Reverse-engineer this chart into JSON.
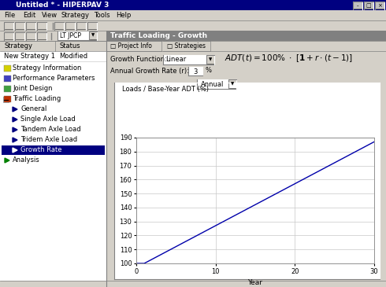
{
  "title_bar": "Untitled * - HIPERPAV 3",
  "menu_items": [
    "File",
    "Edit",
    "View",
    "Strategy",
    "Tools",
    "Help"
  ],
  "tab_project": "Project Info",
  "tab_strategies": "Strategies",
  "panel_title": "Traffic Loading - Growth",
  "dropdown_label": "LT JPCP",
  "strategy_label": "Strategy",
  "status_label": "Status",
  "strategy_name": "New Strategy 1",
  "strategy_status": "Modified",
  "growth_function_label": "Growth Function:",
  "growth_function_value": "Linear",
  "annual_growth_label": "Annual Growth Rate (r):",
  "annual_growth_value": "3",
  "annual_growth_unit": "%",
  "annual_dropdown": "Annual",
  "chart_ylabel": "Loads / Base-Year ADT (%)",
  "chart_xlabel": "Year",
  "chart_xlim": [
    0,
    30
  ],
  "chart_ylim": [
    100,
    190
  ],
  "chart_yticks": [
    100,
    110,
    120,
    130,
    140,
    150,
    160,
    170,
    180,
    190
  ],
  "chart_xticks": [
    0,
    10,
    20,
    30
  ],
  "line_color": "#0000aa",
  "bg_color": "#d4d0c8",
  "sidebar_bg": "#f0f0f0",
  "chart_bg": "#ffffff",
  "title_bar_color": "#000080",
  "title_bar_text_color": "#ffffff",
  "panel_header_color": "#808080",
  "panel_header_text_color": "#ffffff",
  "highlight_color": "#000080",
  "highlight_text_color": "#ffffff",
  "sidebar_items": [
    "Strategy Information",
    "Performance Parameters",
    "Joint Design",
    "Traffic Loading",
    "General",
    "Single Axle Load",
    "Tandem Axle Load",
    "Tridem Axle Load",
    "Growth Rate",
    "Analysis"
  ],
  "t_values": [
    0,
    1,
    2,
    3,
    4,
    5,
    6,
    7,
    8,
    9,
    10,
    11,
    12,
    13,
    14,
    15,
    16,
    17,
    18,
    19,
    20,
    21,
    22,
    23,
    24,
    25,
    26,
    27,
    28,
    29,
    30
  ],
  "y_values": [
    100,
    100,
    103,
    106,
    109,
    112,
    115,
    118,
    121,
    124,
    127,
    130,
    133,
    136,
    139,
    142,
    145,
    148,
    151,
    154,
    157,
    160,
    163,
    166,
    169,
    172,
    175,
    178,
    181,
    184,
    187
  ]
}
